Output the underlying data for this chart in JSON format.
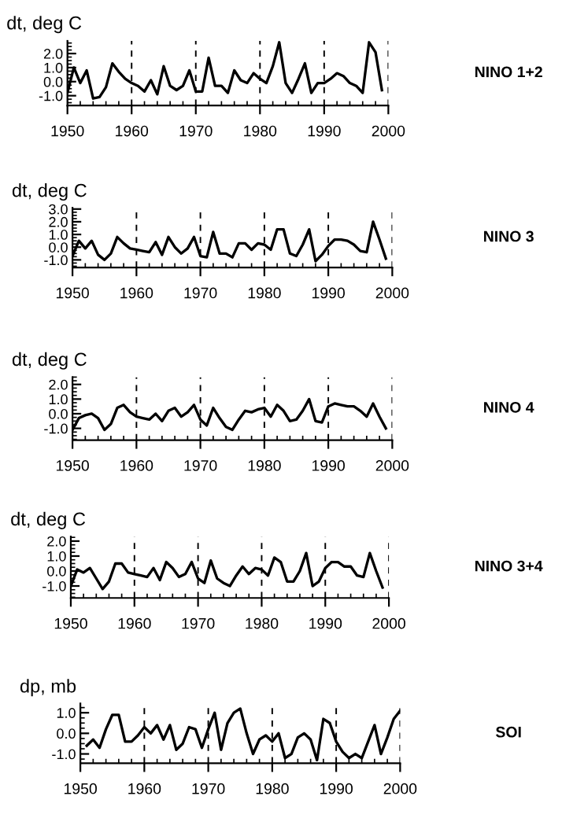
{
  "chart_data": [
    {
      "type": "line",
      "annotations": [
        "NINO 1+2"
      ],
      "ylabel": "dt, deg C",
      "grid": "x",
      "marker": "none",
      "line_style": "solid",
      "x": [
        1950,
        1951,
        1952,
        1953,
        1954,
        1955,
        1956,
        1957,
        1958,
        1959,
        1960,
        1961,
        1962,
        1963,
        1964,
        1965,
        1966,
        1967,
        1968,
        1969,
        1970,
        1971,
        1972,
        1973,
        1974,
        1975,
        1976,
        1977,
        1978,
        1979,
        1980,
        1981,
        1982,
        1983,
        1984,
        1985,
        1986,
        1987,
        1988,
        1989,
        1990,
        1991,
        1992,
        1993,
        1994,
        1995,
        1996,
        1997,
        1998,
        1999
      ],
      "series": [
        {
          "color": "#000000",
          "values": [
            -0.8,
            1.0,
            -0.1,
            0.8,
            -1.2,
            -1.1,
            -0.4,
            1.3,
            0.7,
            0.2,
            -0.1,
            -0.3,
            -0.7,
            0.1,
            -0.9,
            1.1,
            -0.3,
            -0.6,
            -0.3,
            0.8,
            -0.7,
            -0.7,
            1.7,
            -0.3,
            -0.3,
            -0.8,
            0.8,
            0.1,
            -0.1,
            0.6,
            0.2,
            -0.1,
            1.1,
            2.8,
            -0.1,
            -0.8,
            0.2,
            1.3,
            -0.8,
            -0.1,
            -0.1,
            0.2,
            0.6,
            0.4,
            -0.1,
            -0.3,
            -0.8,
            2.8,
            2.1,
            -0.6
          ]
        }
      ],
      "xlim": [
        1950,
        2000
      ],
      "xticks": [
        1950,
        1960,
        1970,
        1980,
        1990,
        2000
      ],
      "ylim": [
        -1.7,
        2.9
      ],
      "yticks": [
        {
          "value": -1,
          "label": "-1.0"
        },
        {
          "value": 0,
          "label": "0.0"
        },
        {
          "value": 1,
          "label": "1.0"
        },
        {
          "value": 2,
          "label": "2.0"
        }
      ]
    },
    {
      "type": "line",
      "annotations": [
        "NINO 3"
      ],
      "ylabel": "dt, deg C",
      "grid": "x",
      "marker": "none",
      "line_style": "solid",
      "x": [
        1950,
        1951,
        1952,
        1953,
        1954,
        1955,
        1956,
        1957,
        1958,
        1959,
        1960,
        1961,
        1962,
        1963,
        1964,
        1965,
        1966,
        1967,
        1968,
        1969,
        1970,
        1971,
        1972,
        1973,
        1974,
        1975,
        1976,
        1977,
        1978,
        1979,
        1980,
        1981,
        1982,
        1983,
        1984,
        1985,
        1986,
        1987,
        1988,
        1989,
        1990,
        1991,
        1992,
        1993,
        1994,
        1995,
        1996,
        1997,
        1998,
        1999
      ],
      "series": [
        {
          "color": "#000000",
          "values": [
            -0.7,
            0.5,
            -0.1,
            0.5,
            -0.6,
            -1.0,
            -0.5,
            0.8,
            0.3,
            -0.1,
            -0.2,
            -0.3,
            -0.4,
            0.4,
            -0.6,
            0.8,
            0.0,
            -0.5,
            -0.1,
            0.8,
            -0.7,
            -0.8,
            1.2,
            -0.5,
            -0.5,
            -0.8,
            0.3,
            0.3,
            -0.2,
            0.3,
            0.2,
            -0.2,
            1.4,
            1.4,
            -0.5,
            -0.7,
            0.2,
            1.4,
            -1.1,
            -0.6,
            0.1,
            0.6,
            0.6,
            0.5,
            0.2,
            -0.3,
            -0.4,
            2.0,
            0.6,
            -0.9
          ]
        }
      ],
      "xlim": [
        1950,
        2000
      ],
      "xticks": [
        1950,
        1960,
        1970,
        1980,
        1990,
        2000
      ],
      "ylim": [
        -1.6,
        3.1
      ],
      "yticks": [
        {
          "value": -1,
          "label": "-1.0"
        },
        {
          "value": 0,
          "label": "0.0"
        },
        {
          "value": 1,
          "label": "1.0"
        },
        {
          "value": 2,
          "label": "2.0"
        },
        {
          "value": 3,
          "label": "3.0"
        }
      ]
    },
    {
      "type": "line",
      "annotations": [
        "NINO 4"
      ],
      "ylabel": "dt, deg C",
      "grid": "x",
      "marker": "none",
      "line_style": "solid",
      "x": [
        1950,
        1951,
        1952,
        1953,
        1954,
        1955,
        1956,
        1957,
        1958,
        1959,
        1960,
        1961,
        1962,
        1963,
        1964,
        1965,
        1966,
        1967,
        1968,
        1969,
        1970,
        1971,
        1972,
        1973,
        1974,
        1975,
        1976,
        1977,
        1978,
        1979,
        1980,
        1981,
        1982,
        1983,
        1984,
        1985,
        1986,
        1987,
        1988,
        1989,
        1990,
        1991,
        1992,
        1993,
        1994,
        1995,
        1996,
        1997,
        1998,
        1999
      ],
      "series": [
        {
          "color": "#000000",
          "values": [
            -1.1,
            -0.3,
            -0.1,
            0.0,
            -0.3,
            -1.1,
            -0.7,
            0.4,
            0.6,
            0.1,
            -0.2,
            -0.3,
            -0.4,
            0.0,
            -0.5,
            0.2,
            0.4,
            -0.2,
            0.1,
            0.6,
            -0.4,
            -0.8,
            0.4,
            -0.3,
            -0.9,
            -1.1,
            -0.4,
            0.2,
            0.1,
            0.3,
            0.4,
            -0.2,
            0.6,
            0.2,
            -0.5,
            -0.4,
            0.2,
            1.0,
            -0.5,
            -0.6,
            0.5,
            0.7,
            0.6,
            0.5,
            0.5,
            0.2,
            -0.2,
            0.7,
            -0.2,
            -1.0
          ]
        }
      ],
      "xlim": [
        1950,
        2000
      ],
      "xticks": [
        1950,
        1960,
        1970,
        1980,
        1990,
        2000
      ],
      "ylim": [
        -1.8,
        2.5
      ],
      "yticks": [
        {
          "value": -1,
          "label": "-1.0"
        },
        {
          "value": 0,
          "label": "0.0"
        },
        {
          "value": 1,
          "label": "1.0"
        },
        {
          "value": 2,
          "label": "2.0"
        }
      ]
    },
    {
      "type": "line",
      "annotations": [
        "NINO 3+4"
      ],
      "ylabel": "dt, deg C",
      "grid": "x",
      "marker": "none",
      "line_style": "solid",
      "x": [
        1950,
        1951,
        1952,
        1953,
        1954,
        1955,
        1956,
        1957,
        1958,
        1959,
        1960,
        1961,
        1962,
        1963,
        1964,
        1965,
        1966,
        1967,
        1968,
        1969,
        1970,
        1971,
        1972,
        1973,
        1974,
        1975,
        1976,
        1977,
        1978,
        1979,
        1980,
        1981,
        1982,
        1983,
        1984,
        1985,
        1986,
        1987,
        1988,
        1989,
        1990,
        1991,
        1992,
        1993,
        1994,
        1995,
        1996,
        1997,
        1998,
        1999
      ],
      "series": [
        {
          "color": "#000000",
          "values": [
            -1.0,
            0.1,
            -0.1,
            0.2,
            -0.5,
            -1.2,
            -0.7,
            0.5,
            0.5,
            -0.1,
            -0.2,
            -0.3,
            -0.4,
            0.2,
            -0.6,
            0.6,
            0.2,
            -0.4,
            -0.2,
            0.6,
            -0.5,
            -0.8,
            0.7,
            -0.5,
            -0.8,
            -1.0,
            -0.3,
            0.3,
            -0.2,
            0.2,
            0.1,
            -0.3,
            0.9,
            0.6,
            -0.7,
            -0.7,
            0.0,
            1.2,
            -1.0,
            -0.7,
            0.2,
            0.6,
            0.6,
            0.3,
            0.3,
            -0.3,
            -0.4,
            1.2,
            0.0,
            -1.1
          ]
        }
      ],
      "xlim": [
        1950,
        2000
      ],
      "xticks": [
        1950,
        1960,
        1970,
        1980,
        1990,
        2000
      ],
      "ylim": [
        -1.8,
        2.3
      ],
      "yticks": [
        {
          "value": -1,
          "label": "-1.0"
        },
        {
          "value": 0,
          "label": "0.0"
        },
        {
          "value": 1,
          "label": "1.0"
        },
        {
          "value": 2,
          "label": "2.0"
        }
      ]
    },
    {
      "type": "line",
      "annotations": [
        "SOI"
      ],
      "ylabel": "dp, mb",
      "grid": "x",
      "marker": "none",
      "line_style": "solid",
      "x": [
        1951,
        1952,
        1953,
        1954,
        1955,
        1956,
        1957,
        1958,
        1959,
        1960,
        1961,
        1962,
        1963,
        1964,
        1965,
        1966,
        1967,
        1968,
        1969,
        1970,
        1971,
        1972,
        1973,
        1974,
        1975,
        1976,
        1977,
        1978,
        1979,
        1980,
        1981,
        1982,
        1983,
        1984,
        1985,
        1986,
        1987,
        1988,
        1989,
        1990,
        1991,
        1992,
        1993,
        1994,
        1995,
        1996,
        1997,
        1998,
        1999,
        2000
      ],
      "series": [
        {
          "color": "#000000",
          "values": [
            -0.6,
            -0.3,
            -0.7,
            0.2,
            0.9,
            0.9,
            -0.4,
            -0.4,
            -0.1,
            0.3,
            0.0,
            0.4,
            -0.3,
            0.4,
            -0.8,
            -0.5,
            0.3,
            0.2,
            -0.7,
            0.2,
            1.0,
            -0.8,
            0.5,
            1.0,
            1.2,
            0.0,
            -1.0,
            -0.3,
            -0.1,
            -0.4,
            0.0,
            -1.2,
            -1.0,
            -0.2,
            0.0,
            -0.3,
            -1.3,
            0.7,
            0.5,
            -0.4,
            -0.9,
            -1.2,
            -1.0,
            -1.2,
            -0.4,
            0.4,
            -1.0,
            -0.2,
            0.7,
            1.1
          ]
        }
      ],
      "xlim": [
        1950,
        2000
      ],
      "xticks": [
        1950,
        1960,
        1970,
        1980,
        1990,
        2000
      ],
      "ylim": [
        -1.45,
        1.45
      ],
      "yticks": [
        {
          "value": -1,
          "label": "-1.0"
        },
        {
          "value": 0,
          "label": "0.0"
        },
        {
          "value": 1,
          "label": "1.0"
        }
      ]
    }
  ]
}
